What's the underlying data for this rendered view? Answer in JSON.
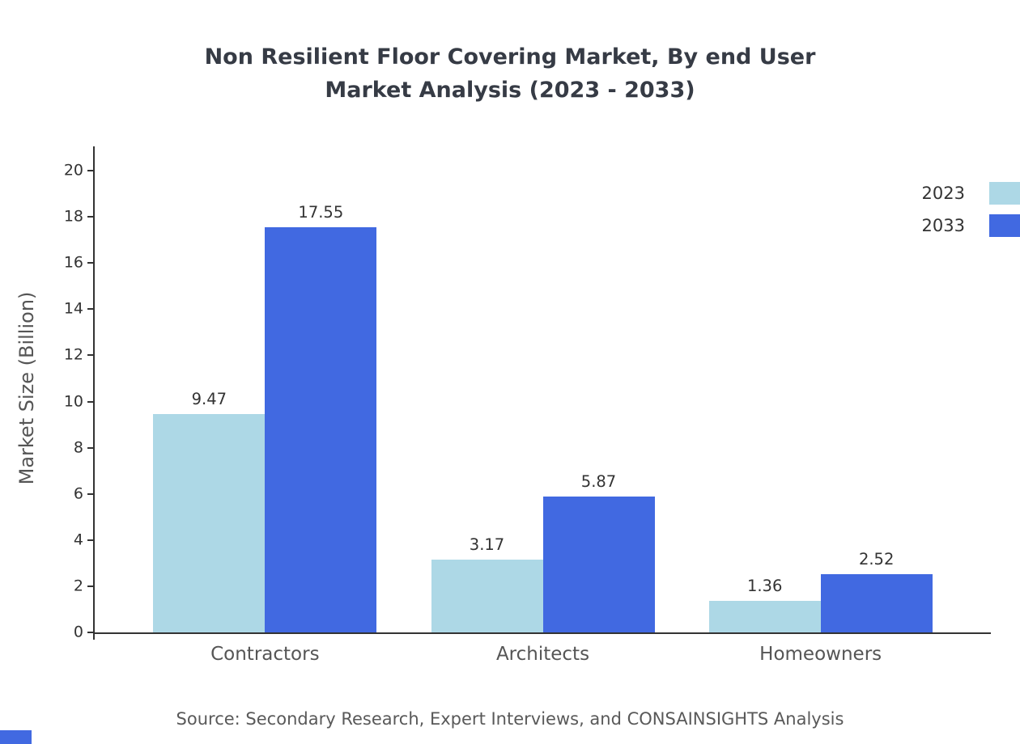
{
  "title": {
    "line1": "Non Resilient Floor Covering Market, By end User",
    "line2": "Market Analysis (2023 - 2033)"
  },
  "source": "Source: Secondary Research, Expert Interviews, and CONSAINSIGHTS Analysis",
  "chart_data": {
    "type": "bar",
    "categories": [
      "Contractors",
      "Architects",
      "Homeowners"
    ],
    "series": [
      {
        "name": "2023",
        "color": "#add8e6",
        "values": [
          9.47,
          3.17,
          1.36
        ]
      },
      {
        "name": "2033",
        "color": "#4169e1",
        "values": [
          17.55,
          5.87,
          2.52
        ]
      }
    ],
    "title": "Non Resilient Floor Covering Market, By end User Market Analysis (2023 - 2033)",
    "xlabel": "",
    "ylabel": "Market Size (Billion)",
    "ylim": [
      0,
      20
    ],
    "ytick_step": 2,
    "grid": false,
    "legend_position": "top-right",
    "value_labels_shown": true
  },
  "colors": {
    "series_2023": "#add8e6",
    "series_2033": "#4169e1",
    "axis": "#333333",
    "title_text": "#363b45",
    "muted_text": "#555555"
  }
}
